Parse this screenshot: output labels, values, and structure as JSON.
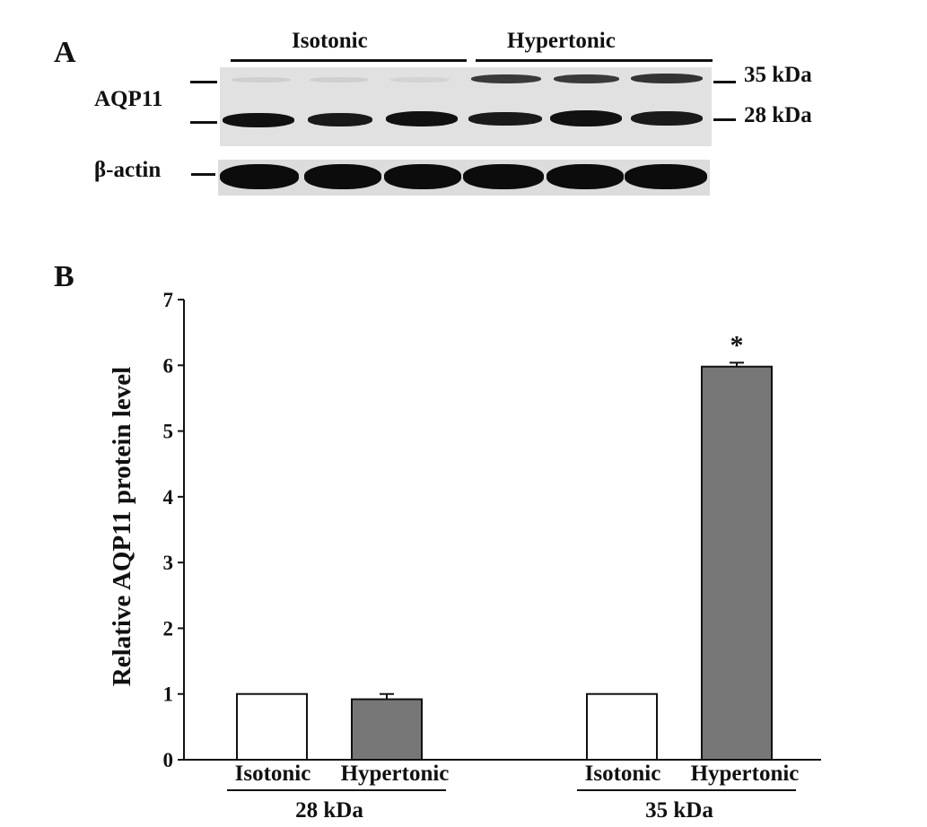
{
  "panel_a": {
    "letter": "A",
    "group_labels": [
      "Isotonic",
      "Hypertonic"
    ],
    "protein_label": "AQP11",
    "loading_control_label": "β-actin",
    "mw_markers": [
      "35 kDa",
      "28 kDa"
    ]
  },
  "panel_b": {
    "letter": "B"
  },
  "chart_data": {
    "type": "bar",
    "ylabel": "Relative AQP11 protein level",
    "ylim": [
      0,
      7
    ],
    "yticks": [
      "0",
      "1",
      "2",
      "3",
      "4",
      "5",
      "6",
      "7"
    ],
    "groups": [
      {
        "label": "28 kDa",
        "bars": [
          {
            "label": "Isotonic",
            "value": 1.0,
            "error": 0,
            "color": "#ffffff",
            "marker": ""
          },
          {
            "label": "Hypertonic",
            "value": 0.92,
            "error": 0.08,
            "color": "#777777",
            "marker": ""
          }
        ]
      },
      {
        "label": "35 kDa",
        "bars": [
          {
            "label": "Isotonic",
            "value": 1.0,
            "error": 0,
            "color": "#ffffff",
            "marker": ""
          },
          {
            "label": "Hypertonic",
            "value": 5.98,
            "error": 0.06,
            "color": "#777777",
            "marker": "*"
          }
        ]
      }
    ],
    "grid": false,
    "legend": "none"
  }
}
